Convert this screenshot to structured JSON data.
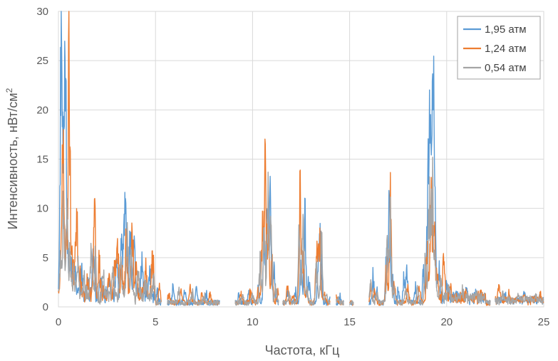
{
  "chart_data": {
    "type": "line",
    "xlabel": "Частота, кГц",
    "ylabel_main": "Интенсивность,  нВт/см",
    "ylabel_sup": "2",
    "xlim": [
      0,
      25
    ],
    "ylim": [
      0,
      30
    ],
    "xticks": [
      "0",
      "5",
      "10",
      "15",
      "20",
      "25"
    ],
    "yticks": [
      "0",
      "5",
      "10",
      "15",
      "20",
      "25",
      "30"
    ],
    "grid": true,
    "legend_position": "top-right",
    "series": [
      {
        "name": "1,95 атм",
        "color": "#5B9BD5",
        "peaks": [
          [
            0.1,
            6
          ],
          [
            0.15,
            30
          ],
          [
            0.25,
            9
          ],
          [
            0.35,
            30
          ],
          [
            0.5,
            6
          ],
          [
            0.65,
            4
          ],
          [
            0.85,
            3
          ],
          [
            1.2,
            3
          ],
          [
            1.5,
            2
          ],
          [
            1.8,
            5
          ],
          [
            2.2,
            2
          ],
          [
            2.6,
            2
          ],
          [
            3.0,
            4
          ],
          [
            3.25,
            7
          ],
          [
            3.4,
            10
          ],
          [
            3.5,
            9
          ],
          [
            3.7,
            8
          ],
          [
            3.9,
            5
          ],
          [
            4.3,
            4
          ],
          [
            4.7,
            2.5
          ],
          [
            5.1,
            1.5
          ],
          [
            5.9,
            2
          ],
          [
            6.5,
            1.5
          ],
          [
            7.1,
            1.8
          ],
          [
            7.6,
            1.2
          ],
          [
            9.3,
            1
          ],
          [
            9.8,
            1.2
          ],
          [
            10.3,
            2
          ],
          [
            10.6,
            8
          ],
          [
            10.75,
            11
          ],
          [
            10.9,
            12
          ],
          [
            11.1,
            4
          ],
          [
            11.8,
            1.5
          ],
          [
            12.2,
            1.5
          ],
          [
            12.5,
            5
          ],
          [
            12.7,
            10.5
          ],
          [
            12.9,
            3
          ],
          [
            13.4,
            6
          ],
          [
            13.5,
            8
          ],
          [
            14.0,
            0.8
          ],
          [
            14.5,
            0.7
          ],
          [
            16.2,
            3.3
          ],
          [
            16.4,
            1.5
          ],
          [
            16.9,
            6
          ],
          [
            17.05,
            11.5
          ],
          [
            17.2,
            3
          ],
          [
            17.5,
            1.5
          ],
          [
            17.8,
            3
          ],
          [
            17.95,
            4.5
          ],
          [
            18.4,
            2
          ],
          [
            18.8,
            4
          ],
          [
            19.0,
            8
          ],
          [
            19.1,
            22
          ],
          [
            19.2,
            15
          ],
          [
            19.3,
            26
          ],
          [
            19.4,
            10
          ],
          [
            19.6,
            4
          ],
          [
            20.0,
            2
          ],
          [
            20.5,
            1
          ],
          [
            21.0,
            1
          ],
          [
            21.5,
            0.8
          ],
          [
            23.0,
            0.7
          ],
          [
            24.0,
            0.6
          ],
          [
            24.8,
            0.5
          ]
        ]
      },
      {
        "name": "1,24 атм",
        "color": "#ED7D31",
        "peaks": [
          [
            0.15,
            8
          ],
          [
            0.25,
            18
          ],
          [
            0.4,
            6
          ],
          [
            0.55,
            30
          ],
          [
            0.7,
            5
          ],
          [
            0.85,
            4
          ],
          [
            0.95,
            8.5
          ],
          [
            1.1,
            3
          ],
          [
            1.5,
            2
          ],
          [
            1.85,
            11
          ],
          [
            2.1,
            4
          ],
          [
            2.6,
            3
          ],
          [
            2.9,
            5
          ],
          [
            3.05,
            6
          ],
          [
            3.25,
            4
          ],
          [
            3.5,
            8
          ],
          [
            3.8,
            9.5
          ],
          [
            4.0,
            3.5
          ],
          [
            4.5,
            3
          ],
          [
            4.85,
            5
          ],
          [
            5.2,
            2
          ],
          [
            5.7,
            1.2
          ],
          [
            6.3,
            1.5
          ],
          [
            6.8,
            2
          ],
          [
            7.4,
            1
          ],
          [
            7.8,
            1.3
          ],
          [
            9.4,
            1.2
          ],
          [
            9.9,
            1.5
          ],
          [
            10.3,
            1.5
          ],
          [
            10.5,
            9
          ],
          [
            10.65,
            16
          ],
          [
            10.8,
            10
          ],
          [
            11.0,
            6
          ],
          [
            11.3,
            1.5
          ],
          [
            11.8,
            2
          ],
          [
            12.1,
            1
          ],
          [
            12.45,
            14
          ],
          [
            12.6,
            6
          ],
          [
            12.8,
            1.5
          ],
          [
            13.3,
            6
          ],
          [
            13.45,
            9
          ],
          [
            13.7,
            1
          ],
          [
            14.3,
            0.8
          ],
          [
            16.1,
            2
          ],
          [
            16.3,
            1.5
          ],
          [
            16.9,
            5
          ],
          [
            17.1,
            12
          ],
          [
            17.3,
            2
          ],
          [
            18.0,
            2
          ],
          [
            18.6,
            2
          ],
          [
            19.0,
            7
          ],
          [
            19.2,
            15
          ],
          [
            19.35,
            10
          ],
          [
            19.5,
            4
          ],
          [
            19.85,
            5.8
          ],
          [
            20.2,
            1.5
          ],
          [
            21.0,
            1
          ],
          [
            21.8,
            0.8
          ],
          [
            22.7,
            1.6
          ],
          [
            23.2,
            0.8
          ],
          [
            24.0,
            0.7
          ],
          [
            24.8,
            0.8
          ]
        ]
      },
      {
        "name": "0,54 атм",
        "color": "#A5A5A5",
        "peaks": [
          [
            0.1,
            4
          ],
          [
            0.25,
            10
          ],
          [
            0.45,
            12
          ],
          [
            0.6,
            5
          ],
          [
            0.8,
            3
          ],
          [
            1.0,
            4
          ],
          [
            1.3,
            2.5
          ],
          [
            1.7,
            6
          ],
          [
            1.9,
            4
          ],
          [
            2.3,
            2
          ],
          [
            2.8,
            3
          ],
          [
            3.2,
            4
          ],
          [
            3.55,
            7
          ],
          [
            3.75,
            6
          ],
          [
            4.1,
            3
          ],
          [
            4.5,
            2
          ],
          [
            4.9,
            1.5
          ],
          [
            5.5,
            1
          ],
          [
            6.2,
            1.5
          ],
          [
            6.9,
            1.2
          ],
          [
            7.5,
            1
          ],
          [
            9.5,
            0.8
          ],
          [
            10.0,
            1
          ],
          [
            10.4,
            5
          ],
          [
            10.6,
            9
          ],
          [
            10.8,
            13
          ],
          [
            10.95,
            9
          ],
          [
            11.2,
            2
          ],
          [
            11.9,
            1.2
          ],
          [
            12.4,
            8
          ],
          [
            12.6,
            10
          ],
          [
            12.8,
            2
          ],
          [
            13.3,
            5
          ],
          [
            13.55,
            7.5
          ],
          [
            13.8,
            1
          ],
          [
            14.4,
            0.6
          ],
          [
            16.1,
            2.5
          ],
          [
            16.4,
            1
          ],
          [
            16.95,
            9
          ],
          [
            17.1,
            11
          ],
          [
            17.3,
            2
          ],
          [
            17.9,
            2
          ],
          [
            18.5,
            2
          ],
          [
            18.9,
            5
          ],
          [
            19.1,
            12
          ],
          [
            19.25,
            16
          ],
          [
            19.4,
            7
          ],
          [
            19.7,
            3
          ],
          [
            20.1,
            1.5
          ],
          [
            20.8,
            1
          ],
          [
            21.5,
            0.8
          ],
          [
            22.9,
            0.8
          ],
          [
            23.7,
            0.6
          ],
          [
            24.6,
            0.6
          ]
        ]
      }
    ]
  }
}
